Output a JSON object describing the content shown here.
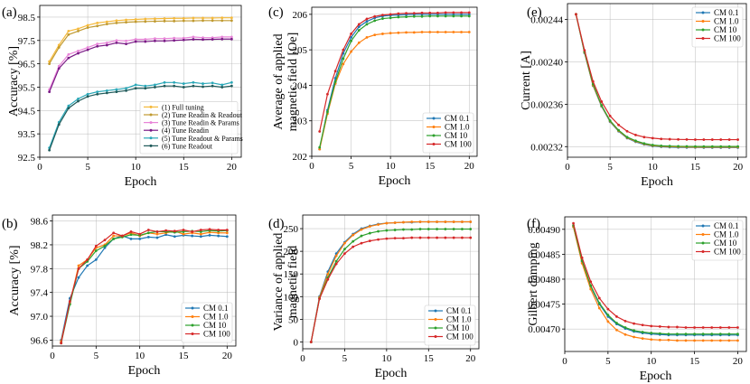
{
  "chart_data": [
    {
      "panel": "(a)",
      "type": "line",
      "xlabel": "Epoch",
      "ylabel": "Accuracy [%]",
      "xlim": [
        0,
        21
      ],
      "ylim": [
        92.5,
        99
      ],
      "xticks": [
        0,
        5,
        10,
        15,
        20
      ],
      "yticks": [
        92.5,
        93.5,
        94.5,
        95.5,
        96.5,
        97.5,
        98.5
      ],
      "ytick_labels": [
        "92.5",
        "93.5",
        "94.5",
        "95.5",
        "96.5",
        "97.5",
        "98.5"
      ],
      "grid": true,
      "legend_position": "lower-right",
      "x": [
        1,
        2,
        3,
        4,
        5,
        6,
        7,
        8,
        9,
        10,
        11,
        12,
        13,
        14,
        15,
        16,
        17,
        18,
        19,
        20
      ],
      "series": [
        {
          "name": "(1) Full tuning",
          "color": "#f5b93a",
          "values": [
            96.6,
            97.3,
            97.9,
            98.0,
            98.15,
            98.25,
            98.3,
            98.35,
            98.38,
            98.4,
            98.42,
            98.43,
            98.44,
            98.45,
            98.45,
            98.46,
            98.46,
            98.46,
            98.47,
            98.47
          ]
        },
        {
          "name": "(2) Tune Readin & Readout",
          "color": "#c09a30",
          "values": [
            96.5,
            97.2,
            97.75,
            97.9,
            98.05,
            98.12,
            98.2,
            98.25,
            98.28,
            98.3,
            98.31,
            98.32,
            98.33,
            98.33,
            98.34,
            98.34,
            98.35,
            98.35,
            98.35,
            98.35
          ]
        },
        {
          "name": "(3) Tune Readin & Params",
          "color": "#e884d8",
          "values": [
            95.4,
            96.4,
            96.9,
            97.05,
            97.2,
            97.35,
            97.4,
            97.5,
            97.48,
            97.55,
            97.55,
            97.58,
            97.58,
            97.6,
            97.6,
            97.65,
            97.62,
            97.62,
            97.65,
            97.65
          ]
        },
        {
          "name": "(4) Tune Readin",
          "color": "#7a1a86",
          "values": [
            95.3,
            96.3,
            96.75,
            96.95,
            97.1,
            97.25,
            97.3,
            97.4,
            97.35,
            97.45,
            97.45,
            97.48,
            97.48,
            97.5,
            97.52,
            97.55,
            97.54,
            97.55,
            97.56,
            97.56
          ]
        },
        {
          "name": "(5) Tune Readout & Params",
          "color": "#2aa8b8",
          "values": [
            92.9,
            94.0,
            94.7,
            95.0,
            95.2,
            95.3,
            95.35,
            95.4,
            95.45,
            95.6,
            95.55,
            95.6,
            95.7,
            95.7,
            95.65,
            95.7,
            95.65,
            95.68,
            95.6,
            95.7
          ]
        },
        {
          "name": "(6) Tune Readout",
          "color": "#1f5a5a",
          "values": [
            92.8,
            93.9,
            94.6,
            94.9,
            95.1,
            95.2,
            95.25,
            95.3,
            95.35,
            95.45,
            95.45,
            95.5,
            95.55,
            95.55,
            95.5,
            95.55,
            95.52,
            95.55,
            95.5,
            95.55
          ]
        }
      ]
    },
    {
      "panel": "(b)",
      "type": "line",
      "xlabel": "Epoch",
      "ylabel": "Accuracy [%]",
      "xlim": [
        0,
        21
      ],
      "ylim": [
        96.5,
        98.7
      ],
      "xticks": [
        0,
        5,
        10,
        15,
        20
      ],
      "yticks": [
        96.6,
        97.0,
        97.4,
        97.8,
        98.2,
        98.6
      ],
      "ytick_labels": [
        "96.6",
        "97.0",
        "97.4",
        "97.8",
        "98.2",
        "98.6"
      ],
      "grid": true,
      "legend_position": "lower-right",
      "x": [
        1,
        2,
        3,
        4,
        5,
        6,
        7,
        8,
        9,
        10,
        11,
        12,
        13,
        14,
        15,
        16,
        17,
        18,
        19,
        20
      ],
      "series": [
        {
          "name": "CM 0.1",
          "color": "#1f77b4",
          "values": [
            96.6,
            97.3,
            97.65,
            97.85,
            97.95,
            98.15,
            98.3,
            98.35,
            98.3,
            98.3,
            98.33,
            98.32,
            98.37,
            98.34,
            98.36,
            98.35,
            98.34,
            98.36,
            98.35,
            98.34
          ]
        },
        {
          "name": "CM 1.0",
          "color": "#ff7f0e",
          "values": [
            96.58,
            97.22,
            97.85,
            97.95,
            98.15,
            98.2,
            98.35,
            98.35,
            98.4,
            98.35,
            98.4,
            98.38,
            98.4,
            98.43,
            98.38,
            98.4,
            98.38,
            98.41,
            98.4,
            98.4
          ]
        },
        {
          "name": "CM 10",
          "color": "#2ca02c",
          "values": [
            96.55,
            97.2,
            97.8,
            97.92,
            98.1,
            98.18,
            98.3,
            98.33,
            98.37,
            98.36,
            98.4,
            98.42,
            98.42,
            98.41,
            98.42,
            98.43,
            98.42,
            98.44,
            98.43,
            98.44
          ]
        },
        {
          "name": "CM 100",
          "color": "#d62728",
          "values": [
            96.55,
            97.25,
            97.8,
            97.95,
            98.18,
            98.28,
            98.4,
            98.35,
            98.42,
            98.38,
            98.45,
            98.42,
            98.44,
            98.43,
            98.45,
            98.42,
            98.45,
            98.46,
            98.45,
            98.45
          ]
        }
      ]
    },
    {
      "panel": "(c)",
      "type": "line",
      "xlabel": "Epoch",
      "ylabel": "Average of applied\nmagnetic field [Oe]",
      "xlim": [
        0,
        21
      ],
      "ylim": [
        202,
        206.2
      ],
      "xticks": [
        0,
        5,
        10,
        15,
        20
      ],
      "yticks": [
        202,
        203,
        204,
        205,
        206
      ],
      "ytick_labels": [
        "202",
        "203",
        "204",
        "205",
        "206"
      ],
      "grid": true,
      "legend_position": "lower-right",
      "x": [
        1,
        2,
        3,
        4,
        5,
        6,
        7,
        8,
        9,
        10,
        11,
        12,
        13,
        14,
        15,
        16,
        17,
        18,
        19,
        20
      ],
      "series": [
        {
          "name": "CM 0.1",
          "color": "#1f77b4",
          "values": [
            202.2,
            203.3,
            204.2,
            204.9,
            205.35,
            205.65,
            205.8,
            205.9,
            205.95,
            205.97,
            205.98,
            205.99,
            206.0,
            206.0,
            206.0,
            206.0,
            206.0,
            206.0,
            206.0,
            206.0
          ]
        },
        {
          "name": "CM 1.0",
          "color": "#ff7f0e",
          "values": [
            202.2,
            203.2,
            204.05,
            204.6,
            204.95,
            205.2,
            205.35,
            205.42,
            205.45,
            205.47,
            205.48,
            205.49,
            205.49,
            205.5,
            205.5,
            205.5,
            205.5,
            205.5,
            205.5,
            205.5
          ]
        },
        {
          "name": "CM 10",
          "color": "#2ca02c",
          "values": [
            202.25,
            203.25,
            204.1,
            204.75,
            205.25,
            205.55,
            205.72,
            205.82,
            205.88,
            205.9,
            205.92,
            205.93,
            205.94,
            205.94,
            205.95,
            205.95,
            205.95,
            205.95,
            205.95,
            205.95
          ]
        },
        {
          "name": "CM 100",
          "color": "#d62728",
          "values": [
            202.7,
            203.75,
            204.4,
            205.0,
            205.45,
            205.72,
            205.87,
            205.94,
            205.98,
            206.0,
            206.02,
            206.03,
            206.03,
            206.04,
            206.04,
            206.04,
            206.05,
            206.05,
            206.05,
            206.05
          ]
        }
      ]
    },
    {
      "panel": "(d)",
      "type": "line",
      "xlabel": "Epoch",
      "ylabel": "Variance of applied\nmagnetic field",
      "xlim": [
        0,
        21
      ],
      "ylim": [
        -15,
        280
      ],
      "xticks": [
        0,
        5,
        10,
        15,
        20
      ],
      "yticks": [
        0,
        50,
        100,
        150,
        200,
        250
      ],
      "ytick_labels": [
        "0",
        "50",
        "100",
        "150",
        "200",
        "250"
      ],
      "grid": true,
      "legend_position": "lower-right",
      "x": [
        1,
        2,
        3,
        4,
        5,
        6,
        7,
        8,
        9,
        10,
        11,
        12,
        13,
        14,
        15,
        16,
        17,
        18,
        19,
        20
      ],
      "series": [
        {
          "name": "CM 0.1",
          "color": "#1f77b4",
          "values": [
            0,
            100,
            155,
            195,
            220,
            238,
            250,
            256,
            260,
            262,
            263,
            264,
            264,
            265,
            265,
            265,
            265,
            265,
            265,
            265
          ]
        },
        {
          "name": "CM 1.0",
          "color": "#ff7f0e",
          "values": [
            0,
            98,
            150,
            190,
            218,
            236,
            248,
            255,
            259,
            262,
            263,
            264,
            265,
            265,
            265,
            265,
            265,
            265,
            265,
            265
          ]
        },
        {
          "name": "CM 10",
          "color": "#2ca02c",
          "values": [
            0,
            96,
            142,
            178,
            205,
            222,
            234,
            240,
            244,
            246,
            247,
            248,
            248,
            249,
            249,
            249,
            249,
            249,
            249,
            249
          ]
        },
        {
          "name": "CM 100",
          "color": "#d62728",
          "values": [
            0,
            95,
            138,
            172,
            195,
            210,
            218,
            223,
            226,
            228,
            229,
            229,
            230,
            230,
            230,
            230,
            230,
            230,
            230,
            230
          ]
        }
      ]
    },
    {
      "panel": "(e)",
      "type": "line",
      "xlabel": "Epoch",
      "ylabel": "Current [A]",
      "xlim": [
        0,
        21
      ],
      "ylim": [
        0.00231,
        0.002455
      ],
      "xticks": [
        0,
        5,
        10,
        15,
        20
      ],
      "yticks": [
        0.00232,
        0.00236,
        0.0024,
        0.00244
      ],
      "ytick_labels": [
        "0.00232",
        "0.00236",
        "0.00240",
        "0.00244"
      ],
      "grid": true,
      "legend_position": "top-right",
      "x": [
        1,
        2,
        3,
        4,
        5,
        6,
        7,
        8,
        9,
        10,
        11,
        12,
        13,
        14,
        15,
        16,
        17,
        18,
        19,
        20
      ],
      "series": [
        {
          "name": "CM 0.1",
          "color": "#1f77b4",
          "values": [
            0.002445,
            0.0024085,
            0.0023775,
            0.002358,
            0.0023435,
            0.0023345,
            0.002328,
            0.0023245,
            0.002322,
            0.0023205,
            0.0023198,
            0.0023195,
            0.0023193,
            0.0023192,
            0.0023192,
            0.0023191,
            0.0023191,
            0.0023191,
            0.0023191,
            0.0023191
          ]
        },
        {
          "name": "CM 1.0",
          "color": "#ff7f0e",
          "values": [
            0.002445,
            0.002409,
            0.002378,
            0.0023585,
            0.002344,
            0.002335,
            0.0023285,
            0.002325,
            0.0023225,
            0.002321,
            0.0023203,
            0.00232,
            0.0023198,
            0.0023197,
            0.0023196,
            0.0023196,
            0.0023196,
            0.0023196,
            0.0023196,
            0.0023196
          ]
        },
        {
          "name": "CM 10",
          "color": "#2ca02c",
          "values": [
            0.002445,
            0.0024095,
            0.002379,
            0.002359,
            0.0023445,
            0.0023355,
            0.002329,
            0.0023255,
            0.002323,
            0.0023215,
            0.0023208,
            0.0023205,
            0.0023203,
            0.0023202,
            0.0023201,
            0.0023201,
            0.0023201,
            0.0023201,
            0.0023201,
            0.0023201
          ]
        },
        {
          "name": "CM 100",
          "color": "#d62728",
          "values": [
            0.002445,
            0.002411,
            0.0023815,
            0.0023625,
            0.002349,
            0.0023405,
            0.0023345,
            0.002331,
            0.002329,
            0.002328,
            0.0023273,
            0.002327,
            0.0023268,
            0.0023267,
            0.0023266,
            0.0023266,
            0.0023266,
            0.0023266,
            0.0023266,
            0.0023266
          ]
        }
      ]
    },
    {
      "panel": "(f)",
      "type": "line",
      "xlabel": "Epoch",
      "ylabel": "Gilbert damping",
      "xlim": [
        0,
        21
      ],
      "ylim": [
        0.004655,
        0.004925
      ],
      "xticks": [
        0,
        5,
        10,
        15,
        20
      ],
      "yticks": [
        0.0047,
        0.00475,
        0.0048,
        0.00485,
        0.0049
      ],
      "ytick_labels": [
        "0.00470",
        "0.00475",
        "0.00480",
        "0.00485",
        "0.00490"
      ],
      "grid": true,
      "legend_position": "top-right",
      "x": [
        1,
        2,
        3,
        4,
        5,
        6,
        7,
        8,
        9,
        10,
        11,
        12,
        13,
        14,
        15,
        16,
        17,
        18,
        19,
        20
      ],
      "series": [
        {
          "name": "CM 0.1",
          "color": "#1f77b4",
          "values": [
            0.004905,
            0.004835,
            0.004785,
            0.00475,
            0.004725,
            0.00471,
            0.004701,
            0.004695,
            0.004692,
            0.00469,
            0.004689,
            0.004688,
            0.004688,
            0.004688,
            0.004688,
            0.004688,
            0.004688,
            0.004688,
            0.004688,
            0.004688
          ]
        },
        {
          "name": "CM 1.0",
          "color": "#ff7f0e",
          "values": [
            0.004905,
            0.004832,
            0.00478,
            0.004742,
            0.004715,
            0.004698,
            0.004689,
            0.004684,
            0.004681,
            0.004679,
            0.004678,
            0.004678,
            0.004677,
            0.004677,
            0.004677,
            0.004677,
            0.004677,
            0.004677,
            0.004677,
            0.004677
          ]
        },
        {
          "name": "CM 10",
          "color": "#2ca02c",
          "values": [
            0.004908,
            0.004837,
            0.004787,
            0.004752,
            0.004728,
            0.004712,
            0.004703,
            0.004697,
            0.004694,
            0.004692,
            0.004691,
            0.00469,
            0.00469,
            0.00469,
            0.00469,
            0.00469,
            0.00469,
            0.00469,
            0.00469,
            0.00469
          ]
        },
        {
          "name": "CM 100",
          "color": "#d62728",
          "values": [
            0.004912,
            0.004843,
            0.004795,
            0.004762,
            0.00474,
            0.004725,
            0.004716,
            0.004711,
            0.004708,
            0.004706,
            0.004705,
            0.004704,
            0.004704,
            0.004703,
            0.004703,
            0.004703,
            0.004703,
            0.004703,
            0.004703,
            0.004703
          ]
        }
      ]
    }
  ]
}
